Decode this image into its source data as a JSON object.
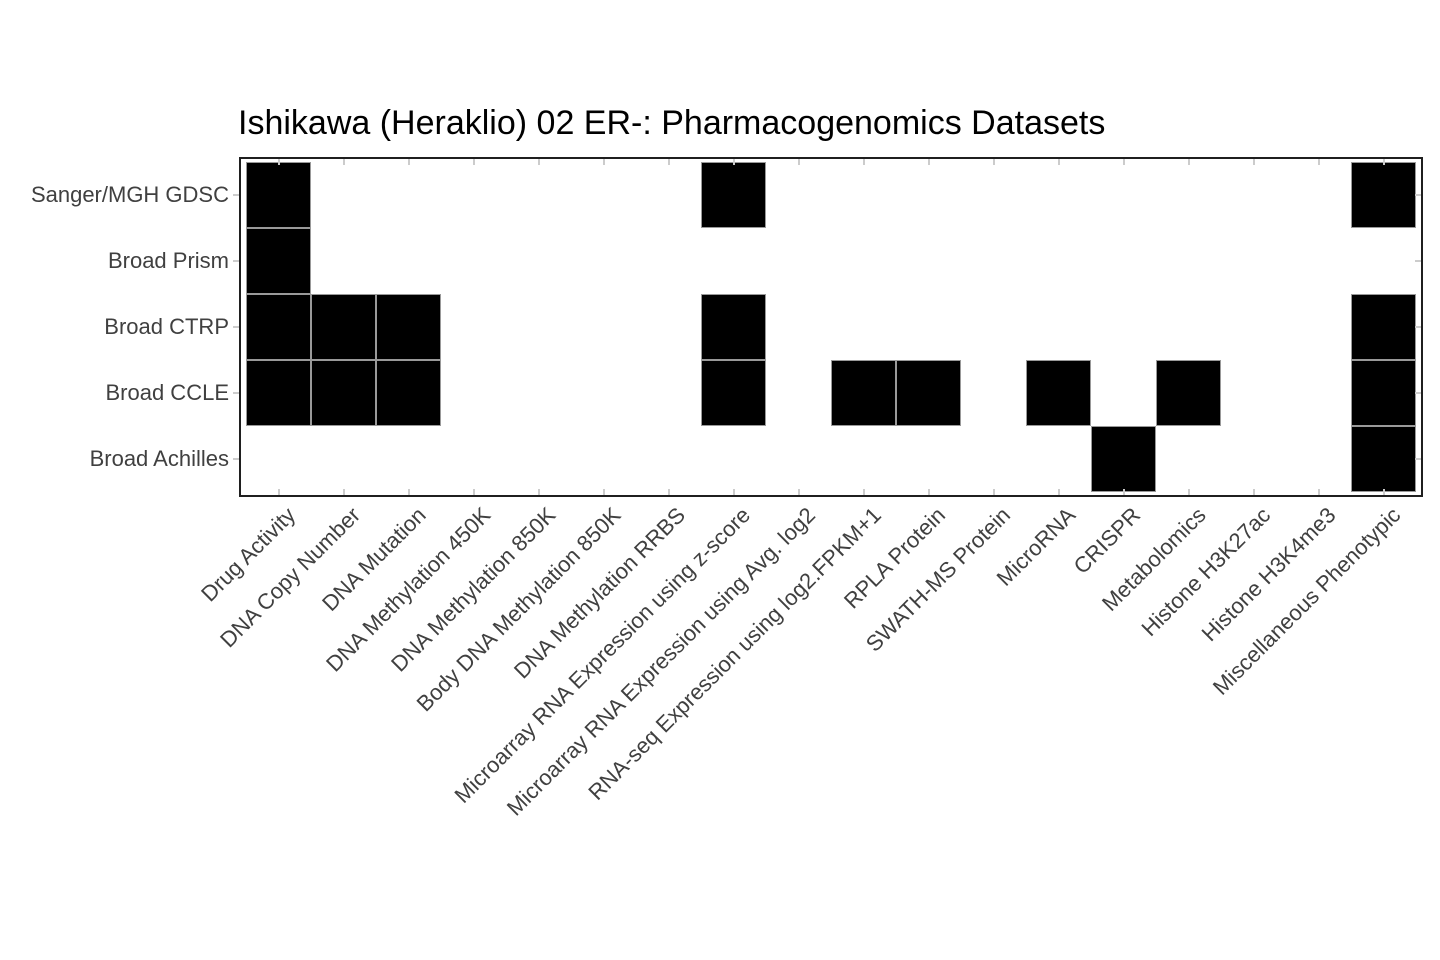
{
  "chart_data": {
    "type": "heatmap",
    "title": "Ishikawa (Heraklio) 02 ER-: Pharmacogenomics Datasets",
    "rows": [
      "Sanger/MGH GDSC",
      "Broad Prism",
      "Broad CTRP",
      "Broad CCLE",
      "Broad Achilles"
    ],
    "columns": [
      "Drug Activity",
      "DNA Copy Number",
      "DNA Mutation",
      "DNA Methylation 450K",
      "DNA Methylation 850K",
      "Body DNA Methylation 850K",
      "DNA Methylation RRBS",
      "Microarray RNA Expression using z-score",
      "Microarray RNA Expression using Avg. log2",
      "RNA-seq Expression using log2.FPKM+1",
      "RPLA Protein",
      "SWATH-MS Protein",
      "MicroRNA",
      "CRISPR",
      "Metabolomics",
      "Histone H3K27ac",
      "Histone H3K4me3",
      "Miscellaneous Phenotypic"
    ],
    "values": [
      [
        1,
        0,
        0,
        0,
        0,
        0,
        0,
        1,
        0,
        0,
        0,
        0,
        0,
        0,
        0,
        0,
        0,
        1
      ],
      [
        1,
        0,
        0,
        0,
        0,
        0,
        0,
        0,
        0,
        0,
        0,
        0,
        0,
        0,
        0,
        0,
        0,
        0
      ],
      [
        1,
        1,
        1,
        0,
        0,
        0,
        0,
        1,
        0,
        0,
        0,
        0,
        0,
        0,
        0,
        0,
        0,
        1
      ],
      [
        1,
        1,
        1,
        0,
        0,
        0,
        0,
        1,
        0,
        1,
        1,
        0,
        1,
        0,
        1,
        0,
        0,
        1
      ],
      [
        0,
        0,
        0,
        0,
        0,
        0,
        0,
        0,
        0,
        0,
        0,
        0,
        0,
        1,
        0,
        0,
        0,
        1
      ]
    ],
    "value_meaning": {
      "1": "dataset present (black tile)",
      "0": "dataset absent (white)"
    },
    "colors": {
      "tile_fill": "#000000",
      "tile_border": "#999999",
      "plot_border": "#1f1f1f",
      "axis_text": "#404040",
      "title_text": "#000000",
      "tick": "#cccccc",
      "background": "#ffffff"
    },
    "legend": "none",
    "grid": "off"
  }
}
